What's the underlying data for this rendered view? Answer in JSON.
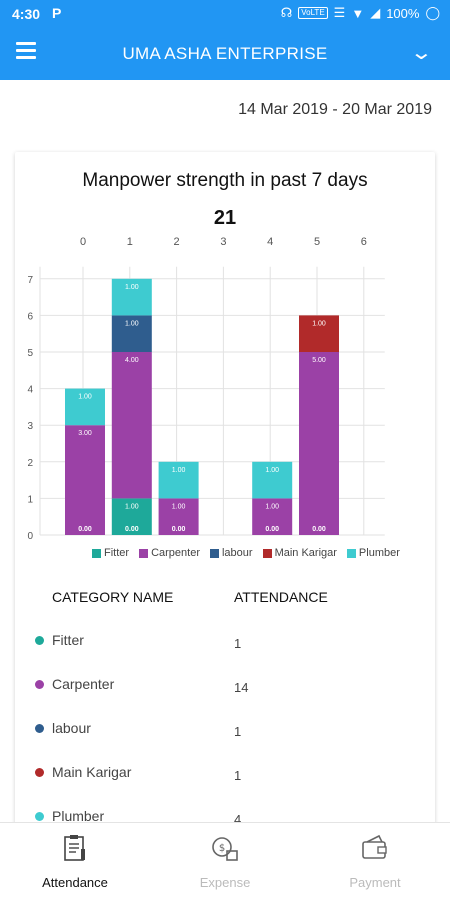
{
  "status_bar": {
    "time": "4:30",
    "volte": "VoLTE",
    "battery": "100%"
  },
  "app_bar": {
    "title": "UMA ASHA ENTERPRISE"
  },
  "date_range": "14 Mar 2019 - 20 Mar 2019",
  "chart_data": {
    "type": "bar",
    "stacked": true,
    "title": "Manpower strength in past 7 days",
    "total": "21",
    "categories": [
      "0",
      "1",
      "2",
      "3",
      "4",
      "5",
      "6"
    ],
    "ylim": [
      0,
      7
    ],
    "yticks": [
      "0",
      "1",
      "2",
      "3",
      "4",
      "5",
      "6",
      "7"
    ],
    "grid": true,
    "legend_position": "bottom",
    "series": [
      {
        "name": "Fitter",
        "color": "#1ea99a",
        "values": [
          0,
          1,
          0,
          null,
          0,
          0,
          null
        ],
        "labels": [
          "0.00",
          "1.00",
          "0.00",
          "",
          "0.00",
          "0.00",
          ""
        ]
      },
      {
        "name": "Carpenter",
        "color": "#9b41a6",
        "values": [
          3,
          4,
          1,
          null,
          1,
          5,
          null
        ],
        "labels": [
          "3.00",
          "4.00",
          "1.00",
          "",
          "1.00",
          "5.00",
          ""
        ]
      },
      {
        "name": "labour",
        "color": "#2f5d8e",
        "values": [
          0,
          1,
          0,
          null,
          0,
          0,
          null
        ],
        "labels": [
          "",
          "1.00",
          "",
          "",
          "",
          "",
          ""
        ]
      },
      {
        "name": "Main Karigar",
        "color": "#b12a2a",
        "values": [
          0,
          0,
          0,
          null,
          0,
          1,
          null
        ],
        "labels": [
          "",
          "",
          "",
          "",
          "",
          "1.00",
          ""
        ]
      },
      {
        "name": "Plumber",
        "color": "#3ecbd0",
        "values": [
          1,
          1,
          1,
          null,
          1,
          0,
          null
        ],
        "labels": [
          "1.00",
          "1.00",
          "1.00",
          "",
          "1.00",
          "",
          ""
        ]
      }
    ],
    "bar_bottom_labels": [
      "0.00",
      "0.00",
      "0.00",
      "",
      "0.00",
      "0.00",
      ""
    ]
  },
  "table": {
    "header_category": "CATEGORY NAME",
    "header_attendance": "ATTENDANCE",
    "rows": [
      {
        "name": "Fitter",
        "attendance": "1",
        "color": "#1ea99a"
      },
      {
        "name": "Carpenter",
        "attendance": "14",
        "color": "#9b41a6"
      },
      {
        "name": "labour",
        "attendance": "1",
        "color": "#2f5d8e"
      },
      {
        "name": "Main Karigar",
        "attendance": "1",
        "color": "#b12a2a"
      },
      {
        "name": "Plumber",
        "attendance": "4",
        "color": "#3ecbd0"
      }
    ]
  },
  "bottom_nav": {
    "items": [
      {
        "label": "Attendance",
        "icon": "attendance-clipboard-icon",
        "active": true
      },
      {
        "label": "Expense",
        "icon": "expense-money-icon",
        "active": false
      },
      {
        "label": "Payment",
        "icon": "payment-wallet-icon",
        "active": false
      }
    ]
  }
}
